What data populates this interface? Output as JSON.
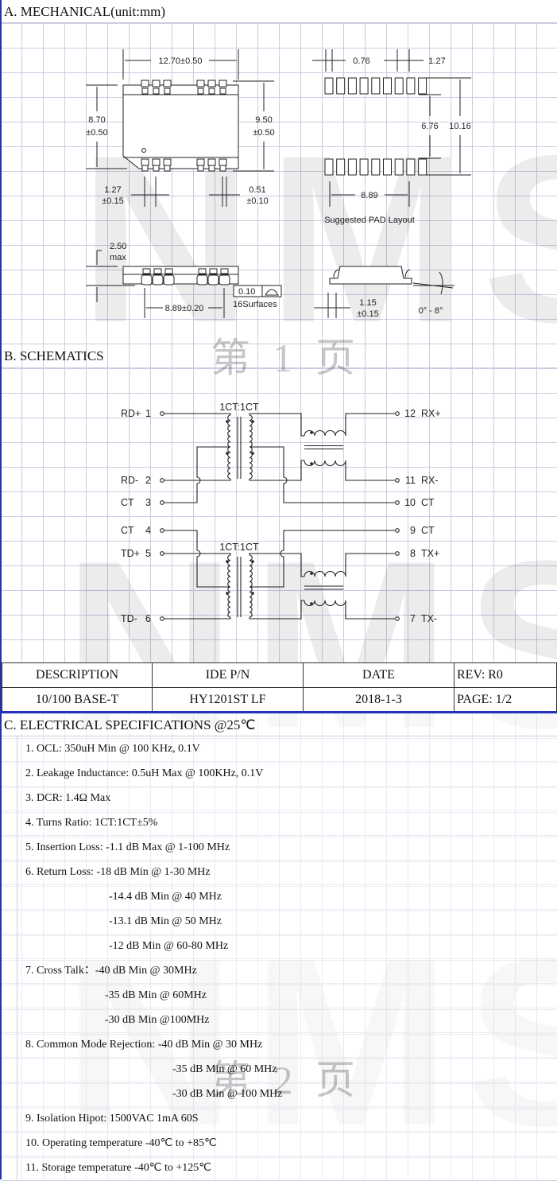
{
  "watermark": {
    "brand": "NMS",
    "page1": "第 1 页",
    "page2": "第 2 页"
  },
  "sections": {
    "mechanical": "A. MECHANICAL(unit:mm)",
    "schematics": "B. SCHEMATICS",
    "electrical": "C. ELECTRICAL SPECIFICATIONS @25℃"
  },
  "mechanical": {
    "width": "12.70±0.50",
    "h1": "8.70",
    "h1tol": "±0.50",
    "h2": "9.50",
    "h2tol": "±0.50",
    "pitch": "1.27",
    "pitchtol": "±0.15",
    "lead": "0.51",
    "leadtol": "±0.10",
    "pad_w": "0.76",
    "pad_pitch": "1.27",
    "pad_gap": "6.76",
    "pad_span": "10.16",
    "pad_len": "8.89",
    "pad_caption": "Suggested PAD Layout",
    "height": "2.50",
    "height_note": "max",
    "side_len": "8.89±0.20",
    "flatness": "0.10",
    "flatness_note": "16Surfaces",
    "foot": "1.15",
    "foottol": "±0.15",
    "angle": "0° - 8°"
  },
  "schematic": {
    "ratio1": "1CT:1CT",
    "ratio2": "1CT:1CT",
    "left_pins": [
      {
        "name": "RD+",
        "num": "1"
      },
      {
        "name": "RD-",
        "num": "2"
      },
      {
        "name": "CT",
        "num": "3"
      },
      {
        "name": "CT",
        "num": "4"
      },
      {
        "name": "TD+",
        "num": "5"
      },
      {
        "name": "TD-",
        "num": "6"
      }
    ],
    "right_pins": [
      {
        "num": "12",
        "name": "RX+"
      },
      {
        "num": "11",
        "name": "RX-"
      },
      {
        "num": "10",
        "name": "CT"
      },
      {
        "num": "9",
        "name": "CT"
      },
      {
        "num": "8",
        "name": "TX+"
      },
      {
        "num": "7",
        "name": "TX-"
      }
    ]
  },
  "titleblock": {
    "headers": [
      "DESCRIPTION",
      "IDE P/N",
      "DATE",
      "REV: R0"
    ],
    "values": [
      "10/100 BASE-T",
      "HY1201ST LF",
      "2018-1-3",
      "PAGE: 1/2"
    ]
  },
  "specs": [
    {
      "label": "1. OCL: 350uH Min @ 100 KHz, 0.1V",
      "indent": 0
    },
    {
      "label": "2. Leakage Inductance: 0.5uH Max @ 100KHz, 0.1V",
      "indent": 0
    },
    {
      "label": "3. DCR: 1.4Ω Max",
      "indent": 0
    },
    {
      "label": "4. Turns Ratio: 1CT:1CT±5%",
      "indent": 0
    },
    {
      "label": "5. Insertion Loss: -1.1 dB Max @ 1-100 MHz",
      "indent": 0
    },
    {
      "label": "6. Return Loss:  -18 dB Min @ 1-30 MHz",
      "indent": 0
    },
    {
      "label": "-14.4 dB Min @ 40 MHz",
      "indent": 1
    },
    {
      "label": "-13.1 dB Min @ 50 MHz",
      "indent": 1
    },
    {
      "label": "-12 dB Min @ 60-80 MHz",
      "indent": 1
    },
    {
      "label": "7. Cross Talk：-40 dB Min @ 30MHz",
      "indent": 0
    },
    {
      "label": "-35 dB Min @ 60MHz",
      "indent": 2
    },
    {
      "label": "-30 dB Min @100MHz",
      "indent": 2
    },
    {
      "label": "8. Common Mode Rejection: -40 dB Min @ 30 MHz",
      "indent": 0
    },
    {
      "label": "-35 dB Min @ 60 MHz",
      "indent": 3
    },
    {
      "label": "-30 dB Min @ 100 MHz",
      "indent": 3
    },
    {
      "label": "9. Isolation Hipot: 1500VAC 1mA 60S",
      "indent": 0
    },
    {
      "label": "10. Operating temperature -40℃ to +85℃",
      "indent": 0
    },
    {
      "label": "11. Storage temperature -40℃ to +125℃",
      "indent": 0
    }
  ]
}
